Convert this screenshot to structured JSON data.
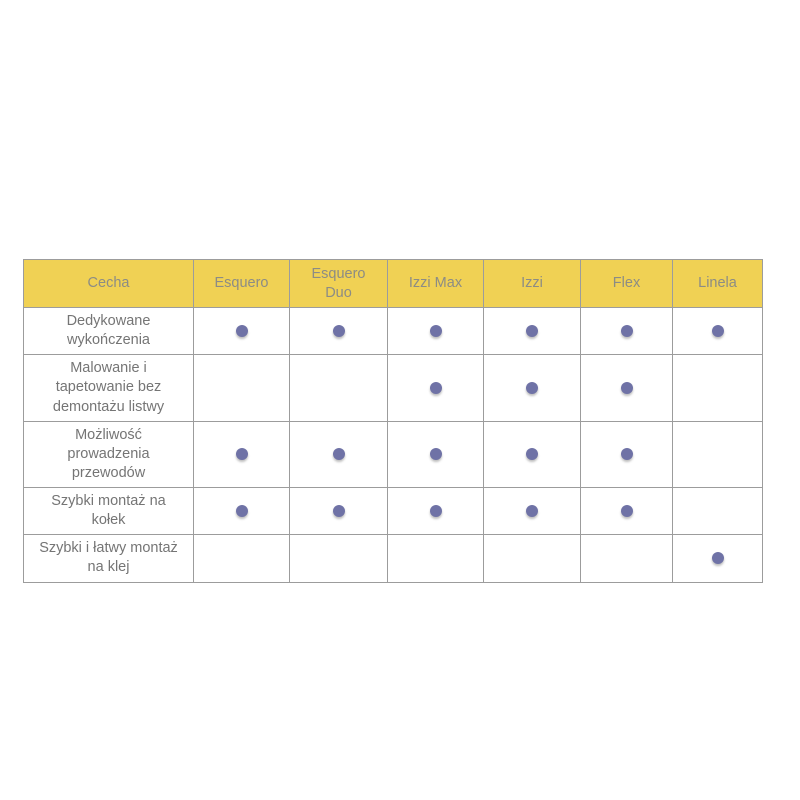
{
  "chart_data": {
    "type": "table",
    "columns": [
      "Cecha",
      "Esquero",
      "Esquero Duo",
      "Izzi Max",
      "Izzi",
      "Flex",
      "Linela"
    ],
    "rows": [
      {
        "label": "Dedykowane wykończenia",
        "values": [
          1,
          1,
          1,
          1,
          1,
          1
        ]
      },
      {
        "label": "Malowanie i tapetowanie bez demontażu listwy",
        "values": [
          0,
          0,
          1,
          1,
          1,
          0
        ]
      },
      {
        "label": "Możliwość prowadzenia przewodów",
        "values": [
          1,
          1,
          1,
          1,
          1,
          0
        ]
      },
      {
        "label": "Szybki montaż na kołek",
        "values": [
          1,
          1,
          1,
          1,
          1,
          0
        ]
      },
      {
        "label": "Szybki i łatwy montaż na klej",
        "values": [
          0,
          0,
          0,
          0,
          0,
          1
        ]
      }
    ],
    "layout": {
      "legend": "none",
      "grid": "full-borders",
      "header_position": "top"
    }
  },
  "icons": {
    "available_marker": "dot-icon"
  },
  "colors": {
    "header_bg": "#F0D154",
    "header_text": "#8C8C85",
    "body_text": "#757575",
    "border": "#9C9C9C",
    "dot": "#6F72A6",
    "page_bg": "#FFFFFF"
  }
}
